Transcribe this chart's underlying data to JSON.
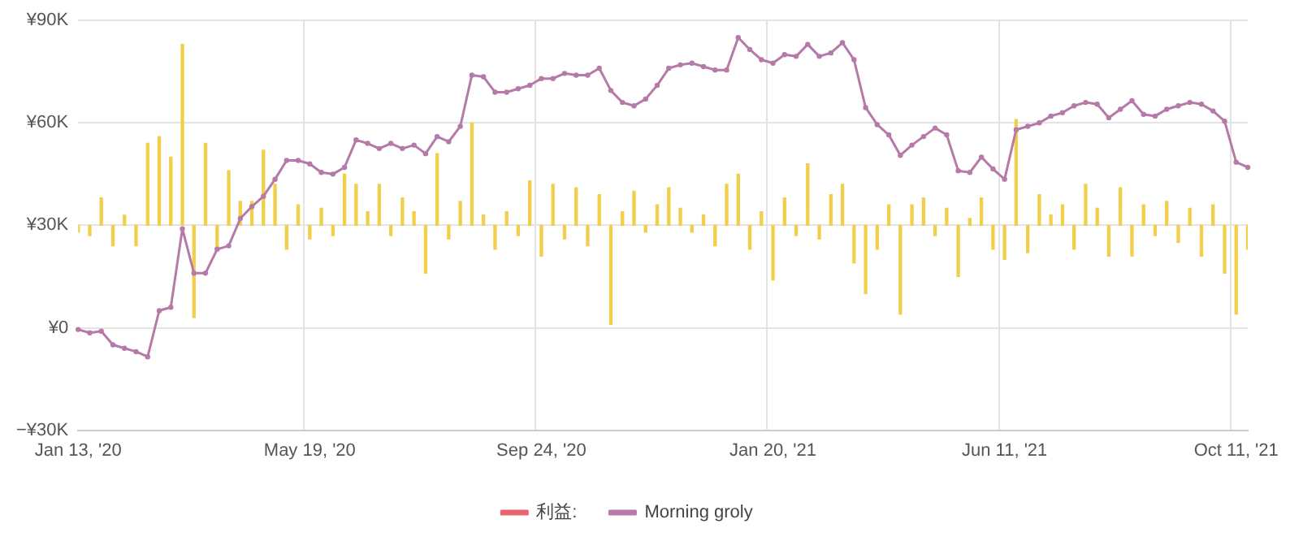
{
  "chart_data": {
    "type": "line",
    "categories": [
      "Jan 13, '20",
      null,
      null,
      null,
      null,
      null,
      null,
      null,
      null,
      null,
      null,
      null,
      null,
      null,
      null,
      null,
      null,
      null,
      null,
      null,
      "May 19, '20",
      null,
      null,
      null,
      null,
      null,
      null,
      null,
      null,
      null,
      null,
      null,
      null,
      null,
      null,
      null,
      null,
      null,
      null,
      null,
      "Sep 24, '20",
      null,
      null,
      null,
      null,
      null,
      null,
      null,
      null,
      null,
      null,
      null,
      null,
      null,
      null,
      null,
      null,
      null,
      null,
      null,
      "Jan 20, '21",
      null,
      null,
      null,
      null,
      null,
      null,
      null,
      null,
      null,
      null,
      null,
      null,
      null,
      null,
      null,
      null,
      null,
      null,
      null,
      "Jun 11, '21",
      null,
      null,
      null,
      null,
      null,
      null,
      null,
      null,
      null,
      null,
      null,
      null,
      null,
      null,
      null,
      null,
      null,
      null,
      null,
      "Oct 11, '21",
      null
    ],
    "series": [
      {
        "type": "bar",
        "color": "#f2cf4a",
        "base": [
          30000,
          30000,
          30000,
          30000,
          30000,
          30000,
          30000,
          30000,
          30000,
          30000,
          30000,
          30000,
          30000,
          30000,
          30000,
          30000,
          30000,
          30000,
          30000,
          30000,
          30000,
          30000,
          30000,
          30000,
          30000,
          30000,
          30000,
          30000,
          30000,
          30000,
          30000,
          30000,
          30000,
          30000,
          30000,
          30000,
          30000,
          30000,
          30000,
          30000,
          30000,
          30000,
          30000,
          30000,
          30000,
          30000,
          30000,
          30000,
          30000,
          30000,
          30000,
          30000,
          30000,
          30000,
          30000,
          30000,
          30000,
          30000,
          30000,
          30000,
          30000,
          30000,
          30000,
          30000,
          30000,
          30000,
          30000,
          30000,
          30000,
          30000,
          30000,
          30000,
          30000,
          30000,
          30000,
          30000,
          30000,
          30000,
          30000,
          30000,
          30000,
          30000,
          30000,
          30000,
          30000,
          30000,
          30000,
          30000,
          30000,
          30000,
          30000,
          30000,
          30000,
          30000,
          30000,
          30000,
          30000,
          30000,
          30000,
          30000,
          30000,
          30000
        ],
        "values": [
          -2000,
          -3000,
          8000,
          -6000,
          3000,
          -6000,
          24000,
          26000,
          20000,
          53000,
          -27000,
          24000,
          -7000,
          16000,
          7000,
          7000,
          22000,
          12000,
          -7000,
          6000,
          -4000,
          5000,
          -3000,
          15000,
          12000,
          4000,
          12000,
          -3000,
          8000,
          4000,
          -14000,
          21000,
          -4000,
          7000,
          30000,
          3000,
          -7000,
          4000,
          -3000,
          13000,
          -9000,
          12000,
          -4000,
          11000,
          -6000,
          9000,
          -29000,
          4000,
          10000,
          -2000,
          6000,
          11000,
          5000,
          -2000,
          3000,
          -6000,
          12000,
          15000,
          -7000,
          4000,
          -16000,
          8000,
          -3000,
          18000,
          -4000,
          9000,
          12000,
          -11000,
          -20000,
          -7000,
          6000,
          -26000,
          6000,
          8000,
          -3000,
          5000,
          -15000,
          2000,
          8000,
          -7000,
          -10000,
          31000,
          -8000,
          9000,
          3000,
          6000,
          -7000,
          12000,
          5000,
          -9000,
          11000,
          -9000,
          6000,
          -3000,
          7000,
          -5000,
          5000,
          -9000,
          6000,
          -14000,
          -26000,
          -7000
        ]
      },
      {
        "name": "利益:",
        "color": "#e8646e",
        "values": [
          null,
          null,
          null,
          null,
          null,
          null,
          null,
          null,
          null,
          null,
          null,
          null,
          null,
          null,
          null,
          null,
          null,
          null,
          null,
          null,
          null,
          null,
          null,
          null,
          null,
          null,
          null,
          null,
          null,
          null,
          null,
          null,
          null,
          null,
          null,
          null,
          null,
          null,
          null,
          null,
          null,
          null,
          null,
          null,
          null,
          null,
          null,
          null,
          null,
          null,
          null,
          null,
          null,
          null,
          null,
          null,
          null,
          null,
          null,
          null,
          null,
          null,
          null,
          null,
          null,
          null,
          null,
          null,
          null,
          null,
          null,
          null,
          null,
          null,
          null,
          null,
          null,
          null,
          null,
          null,
          null,
          null,
          null,
          null,
          null,
          null,
          null,
          null,
          null,
          null,
          null,
          null,
          null,
          null,
          null,
          null,
          null,
          null,
          null,
          null,
          null,
          null
        ]
      },
      {
        "name": "Morning groly",
        "color": "#b57aa8",
        "values": [
          -500,
          -1500,
          -1000,
          -5000,
          -6000,
          -7000,
          -8500,
          5000,
          6000,
          29000,
          16000,
          16000,
          23000,
          24000,
          32000,
          35500,
          38500,
          43500,
          49000,
          49000,
          48000,
          45500,
          45000,
          47000,
          55000,
          54000,
          52500,
          54000,
          52500,
          53500,
          51000,
          56000,
          54500,
          59000,
          74000,
          73500,
          69000,
          69000,
          70000,
          71000,
          73000,
          73000,
          74500,
          74000,
          74000,
          76000,
          69500,
          66000,
          65000,
          67000,
          71000,
          76000,
          77000,
          77500,
          76500,
          75500,
          75500,
          85000,
          81500,
          78500,
          77500,
          80000,
          79500,
          83000,
          79500,
          80500,
          83500,
          78500,
          64500,
          59500,
          56500,
          50500,
          53500,
          56000,
          58500,
          56500,
          46000,
          45500,
          50000,
          46500,
          43500,
          58000,
          59000,
          60000,
          62000,
          63000,
          65000,
          66000,
          65500,
          61500,
          64000,
          66500,
          62500,
          62000,
          64000,
          65000,
          66000,
          65500,
          63500,
          60500,
          48500,
          47000
        ]
      }
    ],
    "ylim": [
      -30000,
      90000
    ],
    "yticks": [
      {
        "value": -30000,
        "label": "−¥30K"
      },
      {
        "value": 0,
        "label": "¥0"
      },
      {
        "value": 30000,
        "label": "¥30K"
      },
      {
        "value": 60000,
        "label": "¥60K"
      },
      {
        "value": 90000,
        "label": "¥90K"
      }
    ],
    "grid": true,
    "legend": "bottom",
    "marker": "circle",
    "line_style": "solid"
  }
}
